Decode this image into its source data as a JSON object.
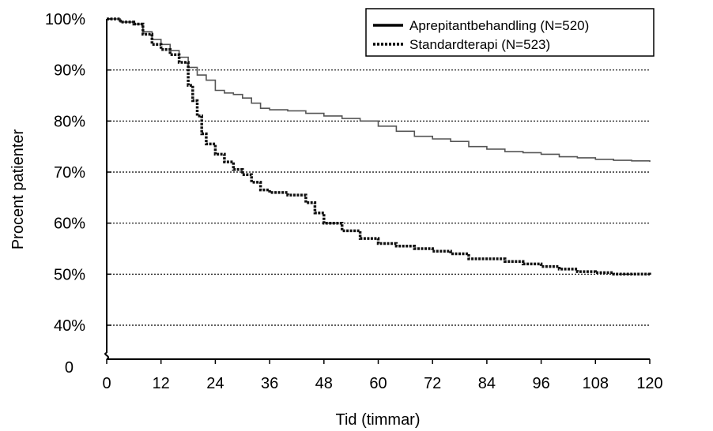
{
  "chart_data": {
    "type": "line",
    "xlabel": "Tid (timmar)",
    "ylabel": "Procent patienter",
    "x_ticks": [
      0,
      12,
      24,
      36,
      48,
      60,
      72,
      84,
      96,
      108,
      120
    ],
    "y_ticks": [
      "100%",
      "90%",
      "80%",
      "70%",
      "60%",
      "50%",
      "40%"
    ],
    "y_break_label": "0",
    "xlim": [
      0,
      120
    ],
    "ylim": [
      40,
      100
    ],
    "y_axis_break": true,
    "grid": "horizontal dotted at 40%–90%",
    "legend_position": "top-right",
    "series": [
      {
        "name": "Aprepitantbehandling (N=520)",
        "style": "solid",
        "color": "#555555",
        "x": [
          0,
          3,
          6,
          8,
          10,
          12,
          14,
          16,
          18,
          20,
          22,
          24,
          26,
          28,
          30,
          32,
          34,
          36,
          40,
          44,
          48,
          52,
          56,
          60,
          64,
          68,
          72,
          76,
          80,
          84,
          88,
          92,
          96,
          100,
          104,
          108,
          112,
          116,
          120
        ],
        "values": [
          100,
          99.4,
          99,
          97.5,
          96,
          95,
          93.8,
          92.5,
          90.5,
          89,
          88,
          86,
          85.5,
          85.2,
          84.5,
          83.5,
          82.5,
          82.2,
          82,
          81.5,
          81,
          80.5,
          80,
          79,
          78,
          77,
          76.5,
          76,
          75,
          74.5,
          74,
          73.8,
          73.5,
          73,
          72.8,
          72.5,
          72.3,
          72.2,
          72
        ]
      },
      {
        "name": "Standardterapi (N=523)",
        "style": "dotted",
        "color": "#111111",
        "x": [
          0,
          3,
          6,
          8,
          10,
          12,
          14,
          16,
          18,
          19,
          20,
          21,
          22,
          24,
          26,
          28,
          30,
          32,
          34,
          36,
          40,
          44,
          46,
          48,
          52,
          56,
          60,
          64,
          68,
          72,
          76,
          80,
          84,
          88,
          92,
          96,
          100,
          104,
          108,
          112,
          116,
          120
        ],
        "values": [
          100,
          99.4,
          99,
          97,
          95,
          94,
          93,
          91.5,
          87,
          84,
          81,
          77.5,
          75.5,
          73.5,
          72,
          70.5,
          69.5,
          68,
          66.5,
          66,
          65.5,
          64,
          62,
          60,
          58.5,
          57,
          56,
          55.5,
          55,
          54.5,
          54,
          53,
          53,
          52.5,
          52,
          51.5,
          51,
          50.5,
          50.3,
          50,
          50,
          49.7
        ]
      }
    ]
  }
}
